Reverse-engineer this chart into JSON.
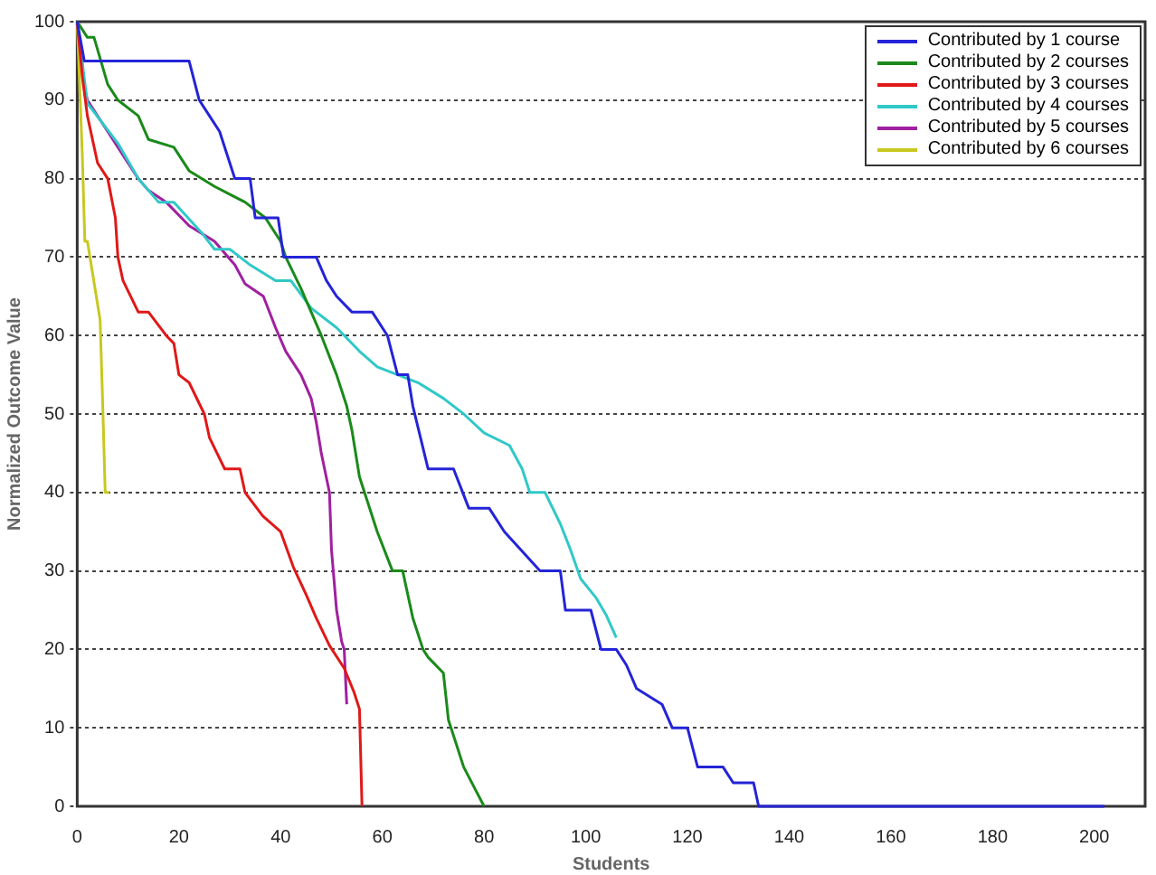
{
  "chart_data": {
    "type": "line",
    "xlabel": "Students",
    "ylabel": "Normalized Outcome Value",
    "xlim": [
      0,
      210
    ],
    "xticks": [
      0,
      20,
      40,
      60,
      80,
      100,
      120,
      140,
      160,
      180,
      200
    ],
    "ylim": [
      0,
      100
    ],
    "yticks": [
      0,
      10,
      20,
      30,
      40,
      50,
      60,
      70,
      80,
      90,
      100
    ],
    "grid": "y",
    "legend": "top right",
    "marker": "none",
    "line_style": "solid",
    "series": [
      {
        "name": "Contributed by 1 course",
        "color": "#2424d8",
        "x": [
          0,
          1.4,
          22,
          24,
          26,
          28,
          31,
          34,
          35,
          39.5,
          40.6,
          47,
          49,
          51,
          54,
          58,
          61,
          63,
          65,
          66,
          69,
          74,
          77,
          81,
          84,
          91,
          95,
          96,
          101,
          103,
          106,
          108,
          110,
          115,
          117,
          120,
          122,
          127,
          129,
          133,
          134,
          202
        ],
        "values": [
          100,
          95,
          95,
          90,
          88,
          86,
          80,
          80,
          75,
          75,
          70,
          70,
          67,
          65,
          63,
          63,
          60,
          55,
          55,
          51,
          43,
          43,
          38,
          38,
          35,
          30,
          30,
          25,
          25,
          20,
          20,
          18,
          15,
          13,
          10,
          10,
          5,
          5,
          3,
          3,
          0,
          0
        ]
      },
      {
        "name": "Contributed by 2 courses",
        "color": "#1a8a1a",
        "x": [
          0,
          2,
          3.3,
          6,
          8,
          12,
          14,
          19,
          22,
          27,
          33,
          37,
          40,
          41,
          44,
          46,
          48,
          51,
          53,
          54,
          55.5,
          57,
          59,
          62,
          64,
          66,
          68,
          69,
          72,
          73,
          76,
          80
        ],
        "values": [
          100,
          98,
          98,
          92,
          90,
          88,
          85,
          84,
          81,
          79,
          77,
          75,
          72,
          70,
          66,
          63,
          60,
          55,
          51,
          48,
          42,
          39,
          35,
          30,
          30,
          24,
          20,
          19,
          17,
          11,
          5,
          0
        ]
      },
      {
        "name": "Contributed by 3 courses",
        "color": "#e01818",
        "x": [
          0,
          1,
          2,
          4,
          6,
          7.5,
          8,
          9,
          12,
          14,
          17.5,
          19,
          20,
          22,
          25,
          26,
          29,
          32,
          33,
          36.5,
          40,
          42.5,
          45,
          47,
          49.6,
          52.5,
          54.4,
          55.5,
          56
        ],
        "values": [
          100,
          93,
          88,
          82,
          80,
          75,
          70,
          67,
          63,
          63,
          60,
          59,
          55,
          54,
          50,
          47,
          43,
          43,
          40,
          37,
          35,
          30.5,
          27,
          24,
          20.5,
          17.6,
          14.6,
          12.4,
          0
        ]
      },
      {
        "name": "Contributed by 4 courses",
        "color": "#30c8c8",
        "x": [
          0,
          2,
          8,
          12,
          16,
          19,
          24.6,
          27,
          30,
          34,
          39,
          42,
          46,
          51,
          55.5,
          59,
          63,
          67,
          72,
          76,
          80,
          85,
          87.5,
          89,
          92,
          95,
          97,
          99,
          102,
          104,
          106
        ],
        "values": [
          100,
          89.6,
          84.5,
          80,
          77,
          77,
          73,
          71,
          71,
          69,
          67,
          67,
          63.5,
          61,
          58,
          56,
          55,
          54,
          52,
          50,
          47.6,
          46,
          43,
          40,
          40,
          36,
          32.7,
          29,
          26.6,
          24.4,
          21.5
        ]
      },
      {
        "name": "Contributed by 5 courses",
        "color": "#a020a0",
        "x": [
          0,
          1.5,
          2,
          7,
          9,
          12,
          14,
          17.5,
          22,
          27,
          31,
          33,
          36.6,
          39,
          41,
          44,
          46,
          47,
          48,
          49.6,
          50,
          51,
          52,
          52.5,
          53
        ],
        "values": [
          100,
          91.4,
          90,
          85,
          83,
          80,
          78.5,
          77,
          74,
          72,
          69,
          66.6,
          65,
          61,
          58,
          55,
          52,
          49,
          45,
          40,
          32.7,
          25,
          21,
          20,
          13
        ]
      },
      {
        "name": "Contributed by 6 courses",
        "color": "#c8c820",
        "x": [
          0,
          1,
          1.5,
          2,
          4.5,
          5,
          5.5,
          6.3
        ],
        "values": [
          100,
          83,
          72,
          72,
          62,
          51.5,
          40,
          40
        ]
      }
    ]
  }
}
